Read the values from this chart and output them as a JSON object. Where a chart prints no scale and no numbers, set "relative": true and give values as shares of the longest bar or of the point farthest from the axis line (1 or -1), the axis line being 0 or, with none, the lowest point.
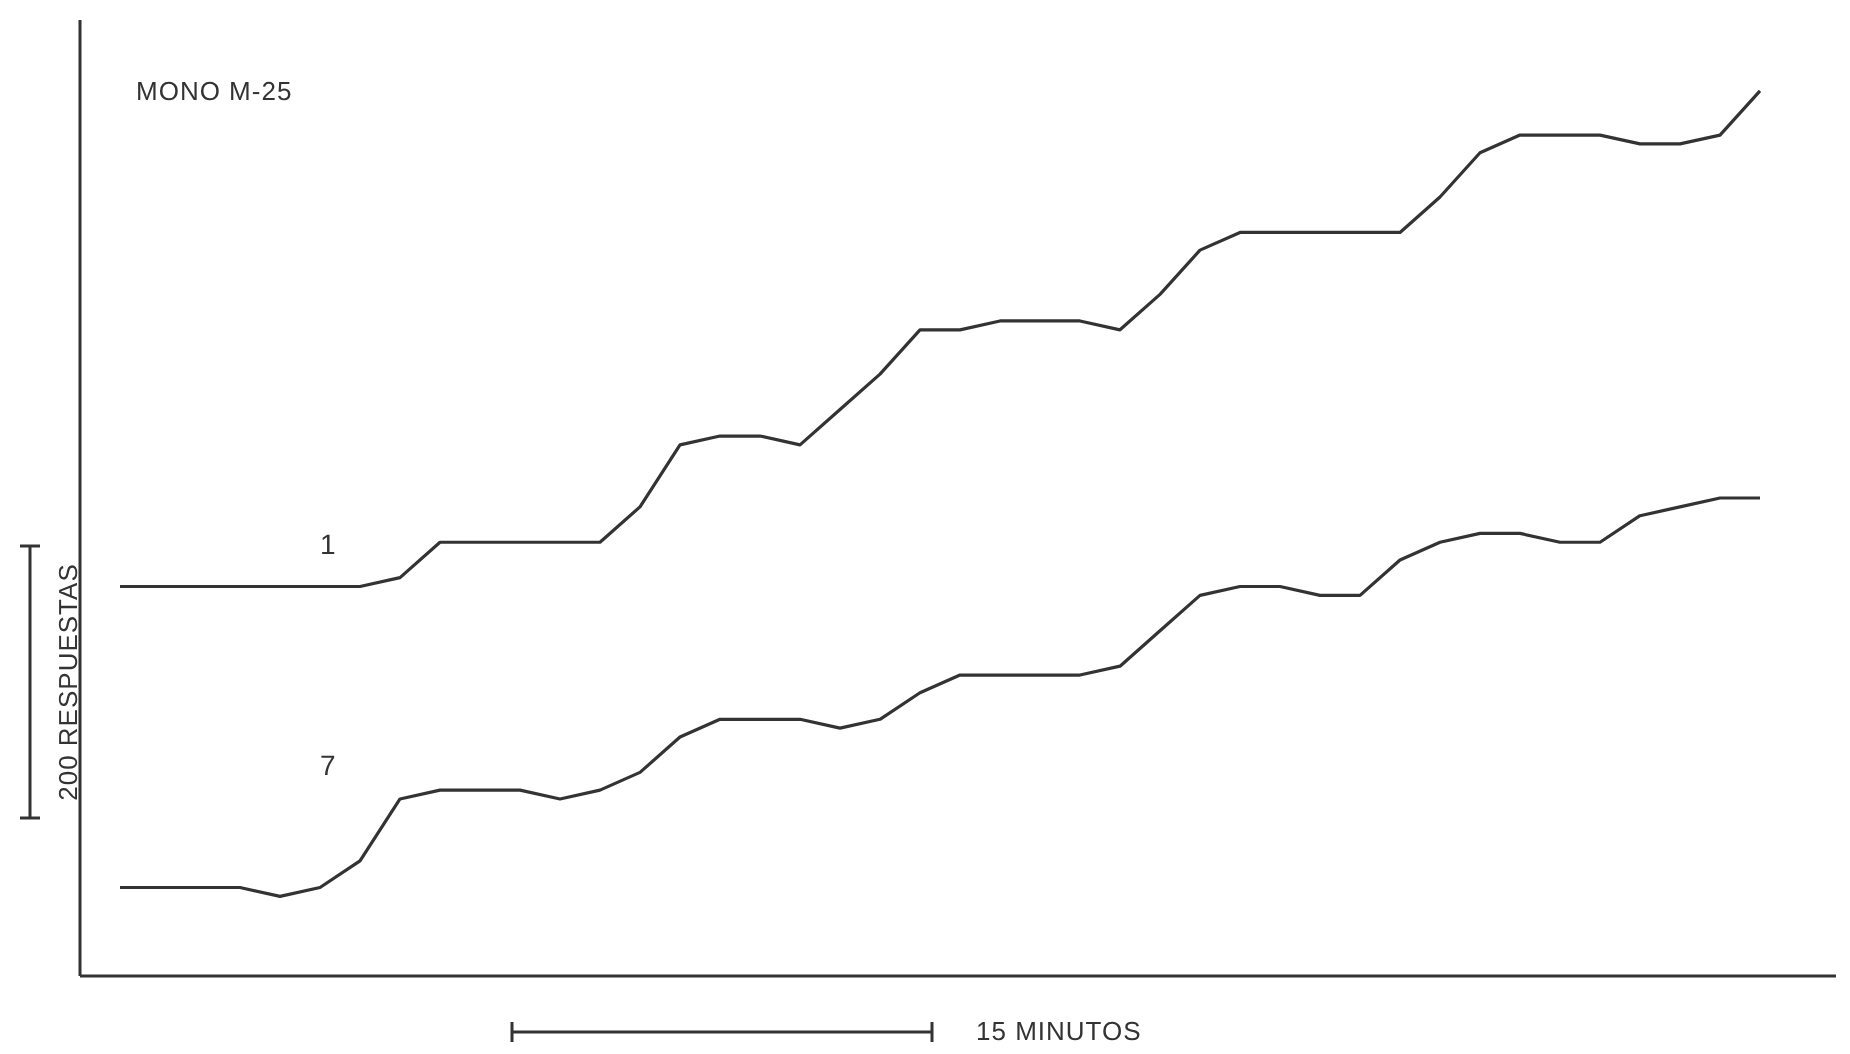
{
  "chart_data": {
    "type": "line",
    "title": "MONO M-25",
    "xlabel": "15 MINUTOS",
    "ylabel": "200 RESPUESTAS",
    "relative": true,
    "grid": false,
    "legend": false,
    "marker": "none",
    "line_style": "solid",
    "categories": [
      null,
      null,
      null,
      null,
      null,
      null,
      null,
      null,
      null,
      null,
      null,
      null,
      null,
      null,
      null,
      null,
      null,
      null,
      null,
      null,
      null,
      null,
      null,
      null,
      null,
      null,
      null,
      null,
      null,
      null,
      null,
      null,
      null,
      null,
      null,
      null,
      null,
      null,
      null,
      null,
      null,
      null
    ],
    "series": [
      {
        "name": "1",
        "color": "#333333",
        "values": [
          0.44,
          0.44,
          0.44,
          0.44,
          0.44,
          0.44,
          0.44,
          0.45,
          0.49,
          0.49,
          0.49,
          0.49,
          0.49,
          0.53,
          0.6,
          0.61,
          0.61,
          0.6,
          0.64,
          0.68,
          0.73,
          0.73,
          0.74,
          0.74,
          0.74,
          0.73,
          0.77,
          0.82,
          0.84,
          0.84,
          0.84,
          0.84,
          0.84,
          0.88,
          0.93,
          0.95,
          0.95,
          0.95,
          0.94,
          0.94,
          0.95,
          1
        ]
      },
      {
        "name": "7",
        "color": "#333333",
        "values": [
          0.1,
          0.1,
          0.1,
          0.1,
          0.09,
          0.1,
          0.13,
          0.2,
          0.21,
          0.21,
          0.21,
          0.2,
          0.21,
          0.23,
          0.27,
          0.29,
          0.29,
          0.29,
          0.28,
          0.29,
          0.32,
          0.34,
          0.34,
          0.34,
          0.34,
          0.35,
          0.39,
          0.43,
          0.44,
          0.44,
          0.43,
          0.43,
          0.47,
          0.49,
          0.5,
          0.5,
          0.49,
          0.49,
          0.52,
          0.53,
          0.54,
          0.54
        ]
      }
    ]
  }
}
